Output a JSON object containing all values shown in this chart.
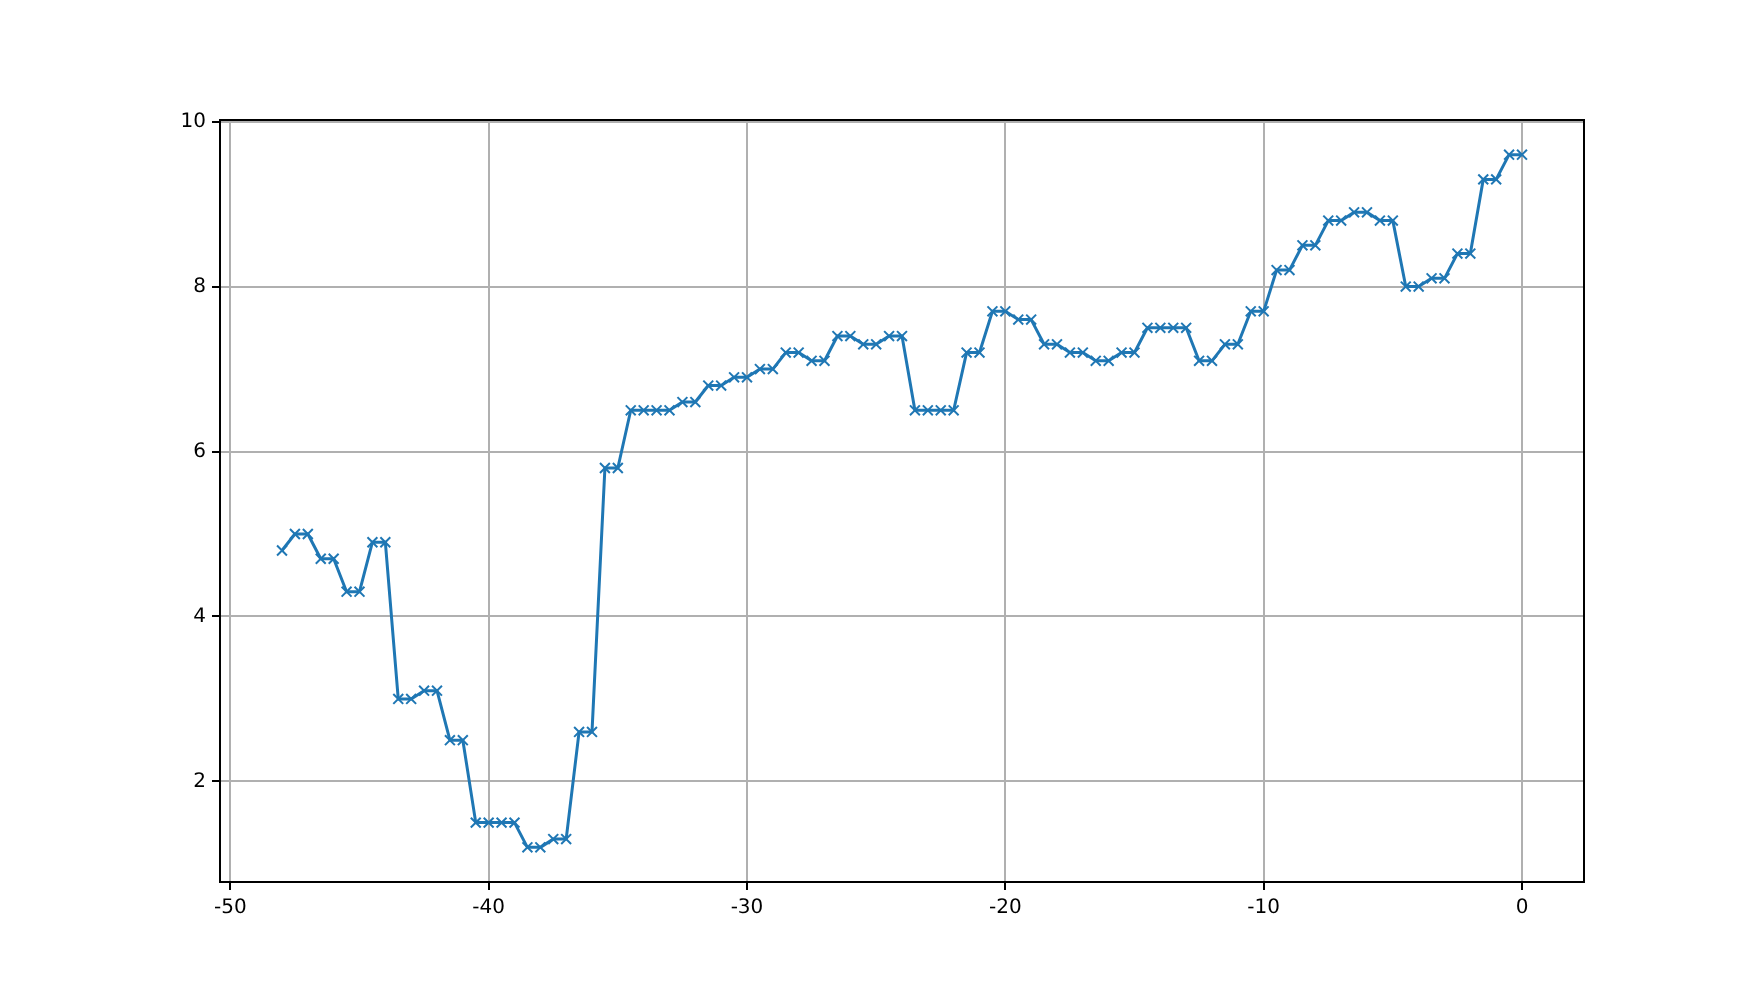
{
  "chart_data": {
    "type": "line",
    "x": [
      -48,
      -47.5,
      -47,
      -46.5,
      -46,
      -45.5,
      -45,
      -44.5,
      -44,
      -43.5,
      -43,
      -42.5,
      -42,
      -41.5,
      -41,
      -40.5,
      -40,
      -39.5,
      -39,
      -38.5,
      -38,
      -37.5,
      -37,
      -36.5,
      -36,
      -35.5,
      -35,
      -34.5,
      -34,
      -33.5,
      -33,
      -32.5,
      -32,
      -31.5,
      -31,
      -30.5,
      -30,
      -29.5,
      -29,
      -28.5,
      -28,
      -27.5,
      -27,
      -26.5,
      -26,
      -25.5,
      -25,
      -24.5,
      -24,
      -23.5,
      -23,
      -22.5,
      -22,
      -21.5,
      -21,
      -20.5,
      -20,
      -19.5,
      -19,
      -18.5,
      -18,
      -17.5,
      -17,
      -16.5,
      -16,
      -15.5,
      -15,
      -14.5,
      -14,
      -13.5,
      -13,
      -12.5,
      -12,
      -11.5,
      -11,
      -10.5,
      -10,
      -9.5,
      -9,
      -8.5,
      -8,
      -7.5,
      -7,
      -6.5,
      -6,
      -5.5,
      -5,
      -4.5,
      -4,
      -3.5,
      -3,
      -2.5,
      -2,
      -1.5,
      -1,
      -0.5,
      0
    ],
    "series": [
      {
        "color": "#1f77b4",
        "values": [
          4.8,
          5.0,
          5.0,
          4.7,
          4.7,
          4.3,
          4.3,
          4.9,
          4.9,
          3.0,
          3.0,
          3.1,
          3.1,
          2.5,
          2.5,
          1.5,
          1.5,
          1.5,
          1.5,
          1.2,
          1.2,
          1.3,
          1.3,
          2.6,
          2.6,
          5.8,
          5.8,
          6.5,
          6.5,
          6.5,
          6.5,
          6.6,
          6.6,
          6.8,
          6.8,
          6.9,
          6.9,
          7.0,
          7.0,
          7.2,
          7.2,
          7.1,
          7.1,
          7.4,
          7.4,
          7.3,
          7.3,
          7.4,
          7.4,
          6.5,
          6.5,
          6.5,
          6.5,
          7.2,
          7.2,
          7.7,
          7.7,
          7.6,
          7.6,
          7.3,
          7.3,
          7.2,
          7.2,
          7.1,
          7.1,
          7.2,
          7.2,
          7.5,
          7.5,
          7.5,
          7.5,
          7.1,
          7.1,
          7.3,
          7.3,
          7.7,
          7.7,
          8.2,
          8.2,
          8.5,
          8.5,
          8.8,
          8.8,
          8.9,
          8.9,
          8.8,
          8.8,
          8.0,
          8.0,
          8.1,
          8.1,
          8.4,
          8.4,
          9.3,
          9.3,
          9.6,
          9.6
        ]
      }
    ],
    "xlim": [
      -50.4,
      2.4
    ],
    "ylim": [
      0.78,
      10.02
    ],
    "xticks": [
      -50,
      -40,
      -30,
      -20,
      -10,
      0
    ],
    "yticks": [
      2,
      4,
      6,
      8,
      10
    ],
    "grid": true,
    "marker": "cross",
    "line_style": "solid"
  }
}
